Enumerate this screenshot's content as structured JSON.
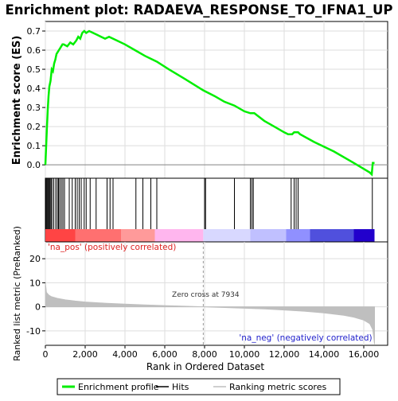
{
  "chart_data": {
    "type": "line",
    "title": "Enrichment plot: RADAEVA_RESPONSE_TO_IFNA1_UP",
    "colors": {
      "profile": "#00ee00",
      "hits": "#000000",
      "metric_fill": "#bfbfbf",
      "pos_label": "#dd2222",
      "neg_label": "#2222cc",
      "zero_line": "#999999"
    },
    "es_panel": {
      "ylabel": "Enrichment score (ES)",
      "ylim": [
        -0.07,
        0.75
      ],
      "yticks": [
        0.0,
        0.1,
        0.2,
        0.3,
        0.4,
        0.5,
        0.6,
        0.7
      ],
      "ytick_labels": [
        "0.0",
        "0.1",
        "0.2",
        "0.3",
        "0.4",
        "0.5",
        "0.6",
        "0.7"
      ],
      "grid": true,
      "profile": {
        "x": [
          0,
          40,
          80,
          120,
          160,
          200,
          260,
          320,
          380,
          440,
          500,
          560,
          620,
          680,
          740,
          800,
          860,
          920,
          1100,
          1250,
          1400,
          1550,
          1650,
          1750,
          1850,
          1950,
          2050,
          2200,
          2400,
          2600,
          2800,
          3000,
          3200,
          3400,
          3600,
          4000,
          4500,
          5000,
          5600,
          6200,
          7000,
          7934,
          8500,
          9000,
          9500,
          10000,
          10300,
          10500,
          11000,
          11500,
          12000,
          12200,
          12400,
          12500,
          12600,
          12700,
          12800,
          13500,
          14500,
          15500,
          16300,
          16400,
          16450,
          16540
        ],
        "y": [
          0.0,
          0.1,
          0.2,
          0.29,
          0.36,
          0.41,
          0.44,
          0.5,
          0.49,
          0.53,
          0.55,
          0.58,
          0.59,
          0.6,
          0.61,
          0.62,
          0.63,
          0.63,
          0.62,
          0.64,
          0.63,
          0.65,
          0.67,
          0.66,
          0.69,
          0.7,
          0.69,
          0.7,
          0.69,
          0.68,
          0.67,
          0.66,
          0.67,
          0.66,
          0.65,
          0.63,
          0.6,
          0.57,
          0.54,
          0.5,
          0.45,
          0.39,
          0.36,
          0.33,
          0.31,
          0.28,
          0.27,
          0.27,
          0.23,
          0.2,
          0.17,
          0.16,
          0.16,
          0.17,
          0.17,
          0.17,
          0.16,
          0.12,
          0.07,
          0.01,
          -0.04,
          -0.05,
          0.01,
          0.01
        ]
      }
    },
    "hits_panel": {
      "positions": [
        30,
        70,
        110,
        150,
        190,
        230,
        280,
        330,
        420,
        520,
        600,
        660,
        720,
        800,
        880,
        960,
        1200,
        1350,
        1500,
        1600,
        1700,
        1800,
        1950,
        2050,
        2250,
        2550,
        3100,
        3250,
        3400,
        4550,
        4900,
        5300,
        5600,
        8000,
        8050,
        9500,
        10300,
        10380,
        10450,
        12350,
        12500,
        12600,
        12700,
        16430
      ],
      "heat_bands": [
        {
          "from": 0,
          "to": 1500,
          "color": "#ff4444"
        },
        {
          "from": 1500,
          "to": 3800,
          "color": "#ff7070"
        },
        {
          "from": 3800,
          "to": 5500,
          "color": "#ff9a9a"
        },
        {
          "from": 5500,
          "to": 7934,
          "color": "#ffb6ee"
        },
        {
          "from": 7934,
          "to": 10300,
          "color": "#d8d8ff"
        },
        {
          "from": 10300,
          "to": 12100,
          "color": "#c0c0ff"
        },
        {
          "from": 12100,
          "to": 13300,
          "color": "#9090ff"
        },
        {
          "from": 13300,
          "to": 15500,
          "color": "#5050dd"
        },
        {
          "from": 15500,
          "to": 16540,
          "color": "#2200cc"
        }
      ]
    },
    "metric_panel": {
      "ylabel": "Ranked list metric (PreRanked)",
      "ylim": [
        -16,
        27
      ],
      "yticks": [
        -10,
        0,
        10,
        20
      ],
      "ytick_labels": [
        "-10",
        "0",
        "10",
        "20"
      ],
      "curve": {
        "x": [
          0,
          50,
          150,
          300,
          600,
          1000,
          1500,
          2000,
          3000,
          4000,
          5000,
          6000,
          7000,
          7934,
          9000,
          10000,
          11000,
          12000,
          13000,
          14000,
          15000,
          15500,
          16000,
          16300,
          16450,
          16500,
          16540
        ],
        "y": [
          10,
          6,
          5,
          4.2,
          3.5,
          2.9,
          2.4,
          2.0,
          1.5,
          1.1,
          0.8,
          0.5,
          0.25,
          0,
          -0.3,
          -0.6,
          -0.9,
          -1.3,
          -1.8,
          -2.5,
          -3.5,
          -4.3,
          -5.5,
          -7.0,
          -9.5,
          -12.5,
          -15.5
        ]
      },
      "pos_label": "'na_pos' (positively correlated)",
      "neg_label": "'na_neg' (negatively correlated)",
      "zero_cross_label": "Zero cross at 7934",
      "zero_cross": 7934
    },
    "xaxis": {
      "xlabel": "Rank in Ordered Dataset",
      "xlim": [
        0,
        17200
      ],
      "xticks": [
        0,
        2000,
        4000,
        6000,
        8000,
        10000,
        12000,
        14000,
        16000
      ],
      "xtick_labels": [
        "0",
        "2,000",
        "4,000",
        "6,000",
        "8,000",
        "10,000",
        "12,000",
        "14,000",
        "16,000"
      ]
    },
    "legend": {
      "placement": "bottom",
      "entries": [
        {
          "label": "Enrichment profile",
          "kind": "line",
          "color": "#00ee00"
        },
        {
          "label": "Hits",
          "kind": "line",
          "color": "#000000"
        },
        {
          "label": "Ranking metric scores",
          "kind": "line",
          "color": "#bfbfbf"
        }
      ]
    }
  }
}
